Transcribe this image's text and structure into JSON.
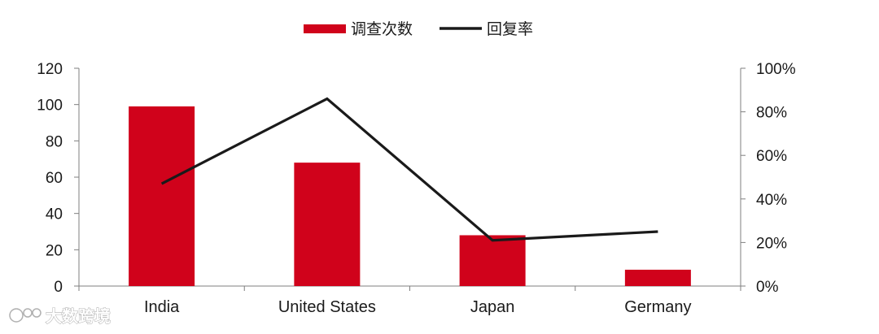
{
  "chart_data": {
    "type": "bar",
    "categories": [
      "India",
      "United States",
      "Japan",
      "Germany"
    ],
    "series": [
      {
        "name": "调查次数",
        "type": "bar",
        "axis": "left",
        "values": [
          99,
          68,
          28,
          9
        ],
        "color": "#d0021b"
      },
      {
        "name": "回复率",
        "type": "line",
        "axis": "right",
        "values": [
          0.47,
          0.86,
          0.21,
          0.25
        ],
        "color": "#1a1a1a"
      }
    ],
    "y_left": {
      "ylim": [
        0,
        120
      ],
      "ticks": [
        "0",
        "20",
        "40",
        "60",
        "80",
        "100",
        "120"
      ],
      "tick_values": [
        0,
        20,
        40,
        60,
        80,
        100,
        120
      ]
    },
    "y_right": {
      "ylim": [
        0,
        1
      ],
      "ticks": [
        "0%",
        "20%",
        "40%",
        "60%",
        "80%",
        "100%"
      ],
      "tick_values": [
        0,
        0.2,
        0.4,
        0.6,
        0.8,
        1.0
      ]
    },
    "legend_position": "top-center",
    "grid": false
  },
  "watermark": {
    "text": "大数跨境"
  }
}
